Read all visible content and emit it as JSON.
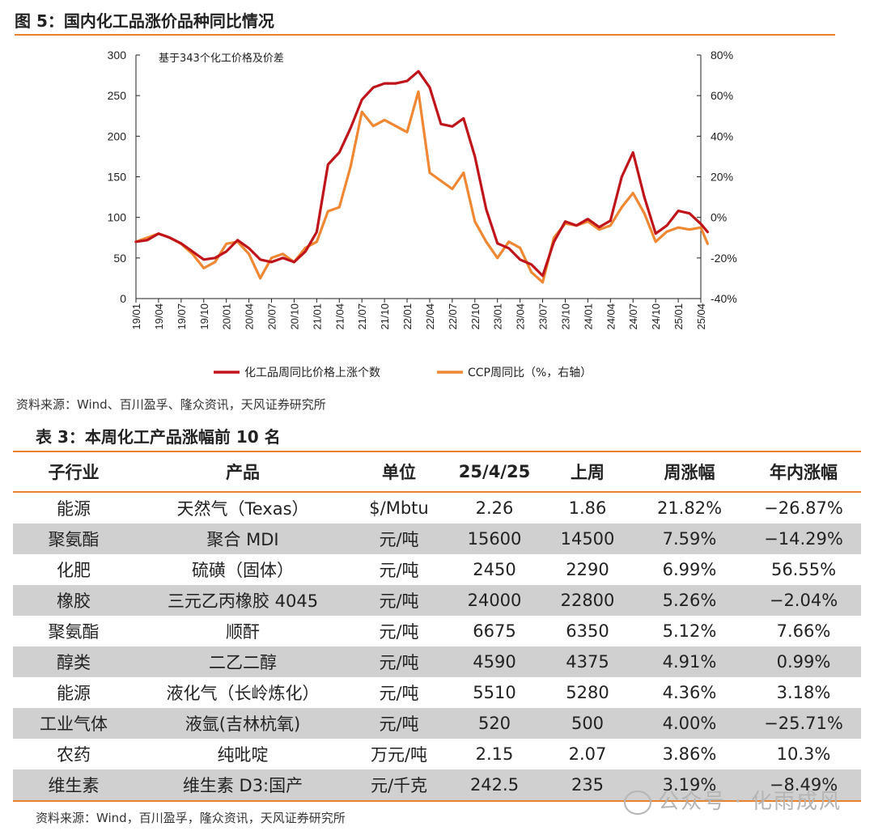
{
  "figure": {
    "title": "图 5：国内化工品涨价品种同比情况",
    "source": "资料来源：Wind、百川盈孚、隆众资讯，天风证券研究所"
  },
  "chart_data": {
    "type": "line",
    "annotation": "基于343个化工价格及价差",
    "x_ticks": [
      "19/01",
      "19/04",
      "19/07",
      "19/10",
      "20/01",
      "20/04",
      "20/07",
      "20/10",
      "21/01",
      "21/04",
      "21/07",
      "21/10",
      "22/01",
      "22/04",
      "22/07",
      "22/10",
      "23/01",
      "23/04",
      "23/07",
      "23/10",
      "24/01",
      "24/04",
      "24/07",
      "24/10",
      "25/01",
      "25/04"
    ],
    "left_axis": {
      "ylim": [
        0,
        300
      ],
      "ticks": [
        "0",
        "50",
        "100",
        "150",
        "200",
        "250",
        "300"
      ]
    },
    "right_axis": {
      "ylim": [
        -40,
        80
      ],
      "ticks": [
        "-40%",
        "-20%",
        "0%",
        "20%",
        "40%",
        "60%",
        "80%"
      ]
    },
    "x": [
      0,
      0.5,
      1,
      1.5,
      2,
      2.5,
      3,
      3.5,
      4,
      4.5,
      5,
      5.5,
      6,
      6.5,
      7,
      7.5,
      8,
      8.5,
      9,
      9.5,
      10,
      10.5,
      11,
      11.5,
      12,
      12.5,
      13,
      13.5,
      14,
      14.5,
      15,
      15.5,
      16,
      16.5,
      17,
      17.5,
      18,
      18.5,
      19,
      19.5,
      20,
      20.5,
      21,
      21.5,
      22,
      22.5,
      23,
      23.5,
      24,
      24.5,
      25,
      25.3
    ],
    "series": [
      {
        "name": "化工品周同比价格上涨个数",
        "axis": "left",
        "color": "#c0141b",
        "values": [
          70,
          72,
          80,
          75,
          68,
          58,
          48,
          50,
          58,
          72,
          62,
          48,
          45,
          50,
          45,
          58,
          82,
          165,
          180,
          210,
          245,
          260,
          265,
          265,
          268,
          280,
          260,
          215,
          212,
          222,
          175,
          110,
          68,
          62,
          48,
          42,
          28,
          70,
          95,
          90,
          98,
          88,
          96,
          150,
          180,
          125,
          80,
          90,
          108,
          105,
          92,
          82
        ]
      },
      {
        "name": "CCP周同比（%，右轴）",
        "axis": "right",
        "color": "#ef8733",
        "values": [
          -12,
          -10,
          -8,
          -10,
          -13,
          -18,
          -25,
          -22,
          -13,
          -12,
          -18,
          -30,
          -20,
          -18,
          -22,
          -15,
          -12,
          3,
          5,
          25,
          52,
          45,
          48,
          45,
          42,
          62,
          22,
          18,
          14,
          22,
          -2,
          -12,
          -20,
          -12,
          -15,
          -27,
          -32,
          -10,
          -3,
          -4,
          -2,
          -6,
          -4,
          5,
          12,
          2,
          -12,
          -7,
          -5,
          -6,
          -5,
          -13
        ]
      }
    ]
  },
  "table": {
    "title": "表 3：本周化工产品涨幅前 10 名",
    "headers": [
      "子行业",
      "产品",
      "单位",
      "25/4/25",
      "上周",
      "周涨幅",
      "年内涨幅"
    ],
    "rows": [
      [
        "能源",
        "天然气（Texas）",
        "$/Mbtu",
        "2.26",
        "1.86",
        "21.82%",
        "−26.87%"
      ],
      [
        "聚氨酯",
        "聚合 MDI",
        "元/吨",
        "15600",
        "14500",
        "7.59%",
        "−14.29%"
      ],
      [
        "化肥",
        "硫磺（固体）",
        "元/吨",
        "2450",
        "2290",
        "6.99%",
        "56.55%"
      ],
      [
        "橡胶",
        "三元乙丙橡胶 4045",
        "元/吨",
        "24000",
        "22800",
        "5.26%",
        "−2.04%"
      ],
      [
        "聚氨酯",
        "顺酐",
        "元/吨",
        "6675",
        "6350",
        "5.12%",
        "7.66%"
      ],
      [
        "醇类",
        "二乙二醇",
        "元/吨",
        "4590",
        "4375",
        "4.91%",
        "0.99%"
      ],
      [
        "能源",
        "液化气（长岭炼化）",
        "元/吨",
        "5510",
        "5280",
        "4.36%",
        "3.18%"
      ],
      [
        "工业气体",
        "液氩(吉林杭氧)",
        "元/吨",
        "520",
        "500",
        "4.00%",
        "−25.71%"
      ],
      [
        "农药",
        "纯吡啶",
        "万元/吨",
        "2.15",
        "2.07",
        "3.86%",
        "10.3%"
      ],
      [
        "维生素",
        "维生素 D3:国产",
        "元/千克",
        "242.5",
        "235",
        "3.19%",
        "−8.49%"
      ]
    ],
    "source": "资料来源：Wind，百川盈孚，隆众资讯，天风证券研究所"
  },
  "watermark": {
    "text": "公众号 · 化雨成风"
  }
}
